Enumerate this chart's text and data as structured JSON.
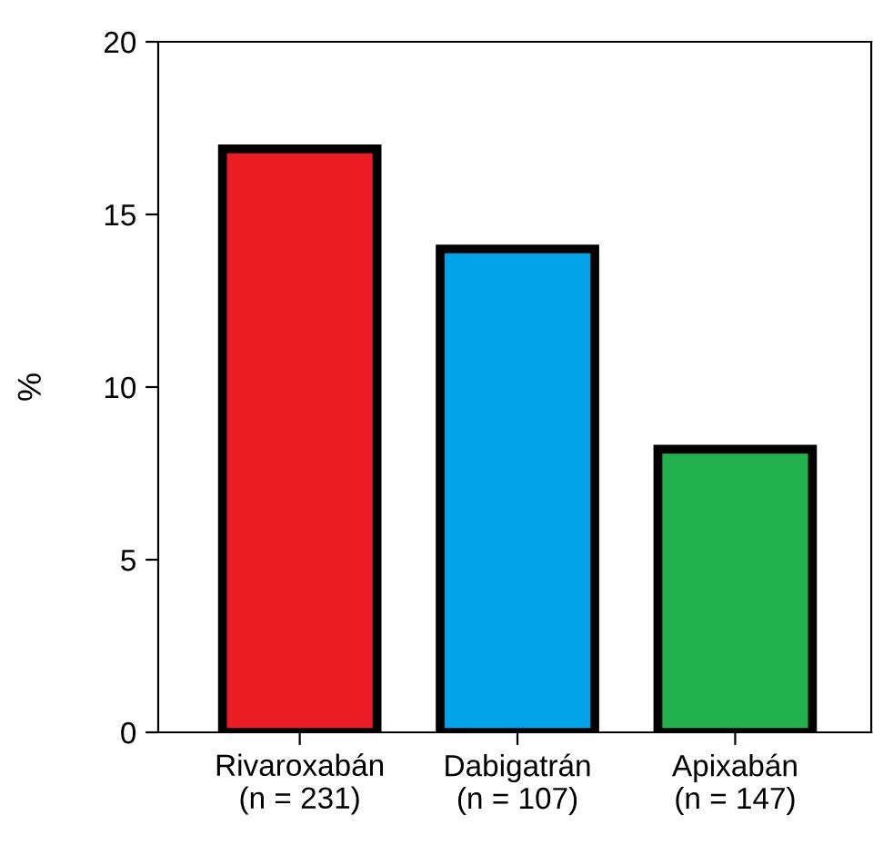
{
  "chart_data": {
    "type": "bar",
    "ylabel": "%",
    "categories": [
      "Rivaroxabán\n(n = 231)",
      "Dabigatrán\n(n = 107)",
      "Apixabán\n(n = 147)"
    ],
    "values": [
      16.9,
      14.0,
      8.2
    ],
    "colors": [
      "#ec1c24",
      "#00a2e8",
      "#22b14c"
    ],
    "ylim": [
      0,
      20
    ],
    "yticks": [
      0,
      5,
      10,
      15,
      20
    ],
    "grid": false
  }
}
